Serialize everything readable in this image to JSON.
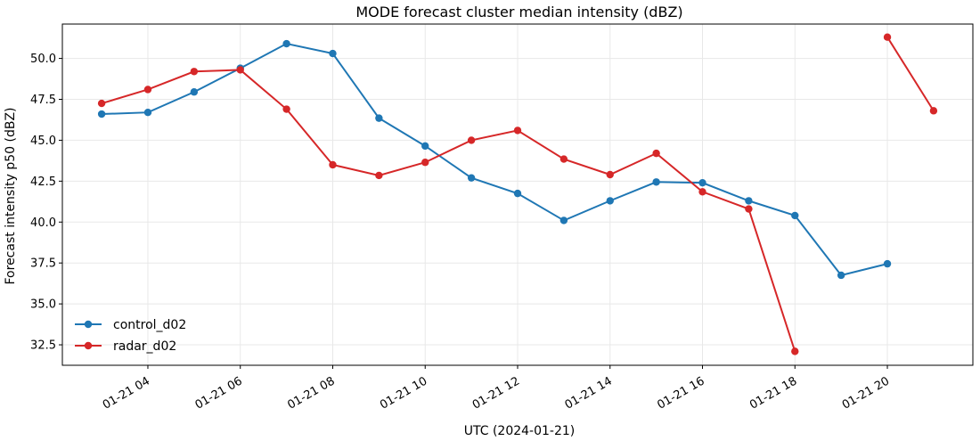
{
  "chart_data": {
    "type": "line",
    "title": "MODE forecast cluster median intensity (dBZ)",
    "xlabel": "UTC (2024-01-21)",
    "ylabel": "Forecast intensity p50 (dBZ)",
    "xlim": [
      "2024-01-21 02:09",
      "2024-01-21 21:51"
    ],
    "ylim": [
      31.25,
      52.1
    ],
    "x_ticks": [
      {
        "value": "2024-01-21 04:00",
        "label": "01-21 04"
      },
      {
        "value": "2024-01-21 06:00",
        "label": "01-21 06"
      },
      {
        "value": "2024-01-21 08:00",
        "label": "01-21 08"
      },
      {
        "value": "2024-01-21 10:00",
        "label": "01-21 10"
      },
      {
        "value": "2024-01-21 12:00",
        "label": "01-21 12"
      },
      {
        "value": "2024-01-21 14:00",
        "label": "01-21 14"
      },
      {
        "value": "2024-01-21 16:00",
        "label": "01-21 16"
      },
      {
        "value": "2024-01-21 18:00",
        "label": "01-21 18"
      },
      {
        "value": "2024-01-21 20:00",
        "label": "01-21 20"
      }
    ],
    "y_ticks": [
      {
        "value": 32.5,
        "label": "32.5"
      },
      {
        "value": 35.0,
        "label": "35.0"
      },
      {
        "value": 37.5,
        "label": "37.5"
      },
      {
        "value": 40.0,
        "label": "40.0"
      },
      {
        "value": 42.5,
        "label": "42.5"
      },
      {
        "value": 45.0,
        "label": "45.0"
      },
      {
        "value": 47.5,
        "label": "47.5"
      },
      {
        "value": 50.0,
        "label": "50.0"
      }
    ],
    "grid": true,
    "legend_position": "lower-left",
    "series": [
      {
        "name": "control_d02",
        "color": "#1f77b4",
        "x": [
          "2024-01-21 03:00",
          "2024-01-21 04:00",
          "2024-01-21 05:00",
          "2024-01-21 06:00",
          "2024-01-21 07:00",
          "2024-01-21 08:00",
          "2024-01-21 09:00",
          "2024-01-21 10:00",
          "2024-01-21 11:00",
          "2024-01-21 12:00",
          "2024-01-21 13:00",
          "2024-01-21 14:00",
          "2024-01-21 15:00",
          "2024-01-21 16:00",
          "2024-01-21 17:00",
          "2024-01-21 18:00",
          "2024-01-21 19:00",
          "2024-01-21 20:00"
        ],
        "values": [
          46.6,
          46.7,
          47.95,
          49.4,
          50.9,
          50.3,
          46.35,
          44.65,
          42.7,
          41.75,
          40.1,
          41.3,
          42.45,
          42.4,
          41.3,
          40.4,
          36.75,
          37.45
        ]
      },
      {
        "name": "radar_d02",
        "color": "#d62728",
        "x": [
          "2024-01-21 03:00",
          "2024-01-21 04:00",
          "2024-01-21 05:00",
          "2024-01-21 06:00",
          "2024-01-21 07:00",
          "2024-01-21 08:00",
          "2024-01-21 09:00",
          "2024-01-21 10:00",
          "2024-01-21 11:00",
          "2024-01-21 12:00",
          "2024-01-21 13:00",
          "2024-01-21 14:00",
          "2024-01-21 15:00",
          "2024-01-21 16:00",
          "2024-01-21 17:00",
          "2024-01-21 18:00",
          "2024-01-21 20:00",
          "2024-01-21 21:00"
        ],
        "values": [
          47.25,
          48.1,
          49.2,
          49.3,
          46.9,
          43.5,
          42.85,
          43.65,
          45.0,
          45.6,
          43.85,
          42.9,
          44.2,
          41.85,
          40.8,
          32.1,
          51.3,
          46.8
        ],
        "segments_break_after": "2024-01-21 18:00"
      }
    ]
  }
}
